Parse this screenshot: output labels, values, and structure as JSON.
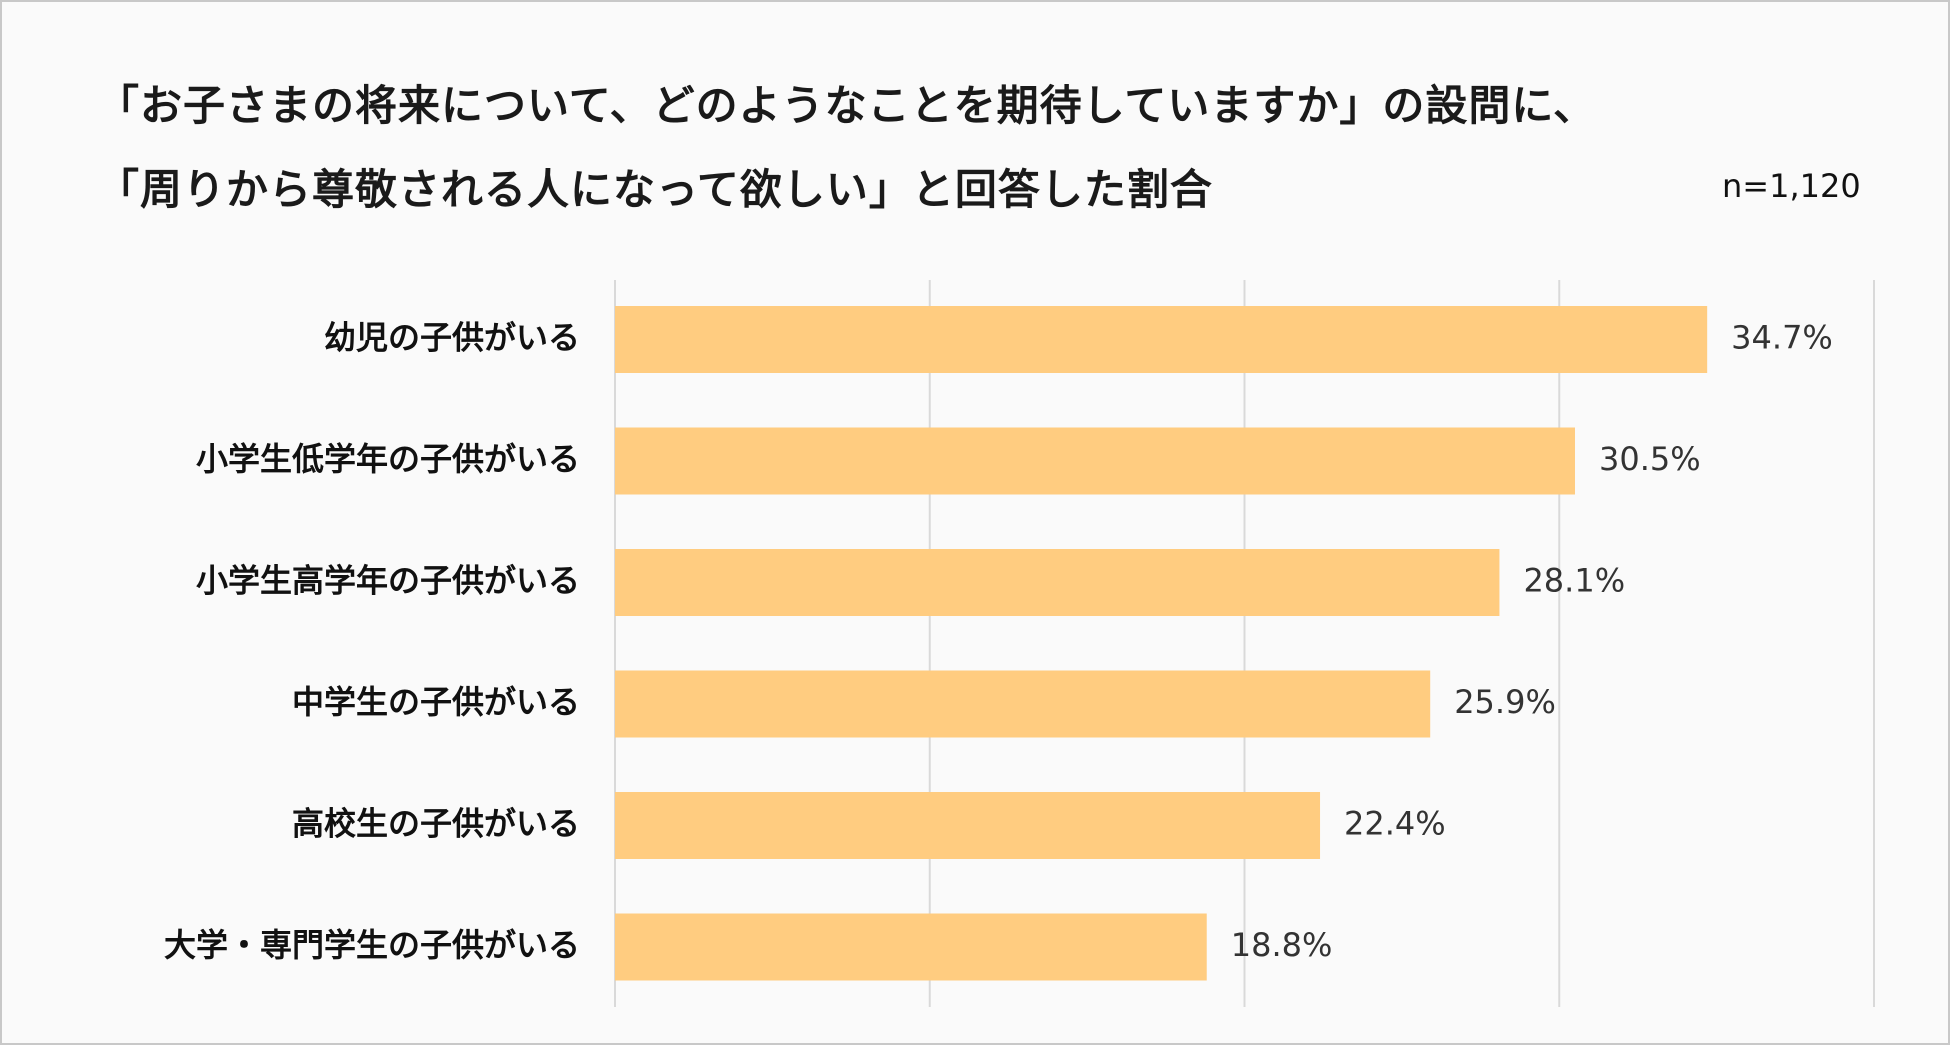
{
  "chart_data": {
    "type": "bar",
    "orientation": "horizontal",
    "title": [
      "「お子さまの将来について、どのようなことを期待していますか」の設問に、",
      "「周りから尊敬される人になって欲しい」と回答した割合"
    ],
    "note": "n=1,120",
    "categories": [
      "幼児の子供がいる",
      "小学生低学年の子供がいる",
      "小学生高学年の子供がいる",
      "中学生の子供がいる",
      "高校生の子供がいる",
      "大学・専門学生の子供がいる"
    ],
    "values": [
      34.7,
      30.5,
      28.1,
      25.9,
      22.4,
      18.8
    ],
    "value_labels": [
      "34.7%",
      "30.5%",
      "28.1%",
      "25.9%",
      "22.4%",
      "18.8%"
    ],
    "xlim": [
      0,
      40
    ],
    "grid": true,
    "bar_color": "#ffcc80",
    "grid_color": "#d9d9d9"
  }
}
